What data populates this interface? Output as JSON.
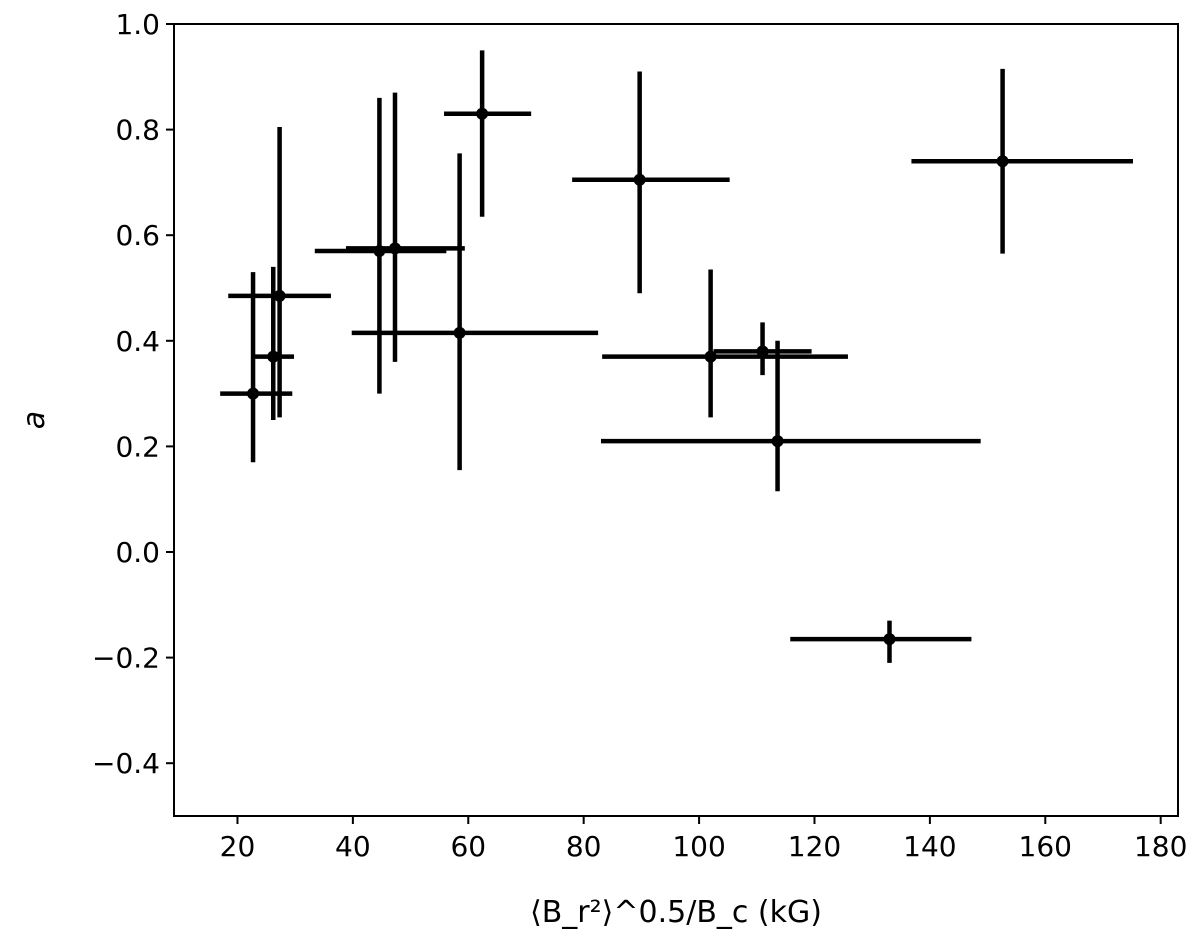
{
  "chart_data": {
    "type": "scatter",
    "title": "",
    "xlabel": "⟨B_r²⟩^0.5/B_c (kG)",
    "ylabel": "a",
    "xlim": [
      9,
      183
    ],
    "ylim": [
      -0.5,
      1.0
    ],
    "x_ticks": [
      20,
      40,
      60,
      80,
      100,
      120,
      140,
      160,
      180
    ],
    "y_ticks": [
      -0.4,
      -0.2,
      0.0,
      0.2,
      0.4,
      0.6,
      0.8,
      1.0
    ],
    "x_tick_labels": [
      "20",
      "40",
      "60",
      "80",
      "100",
      "120",
      "140",
      "160",
      "180"
    ],
    "y_tick_labels": [
      "−0.4",
      "−0.2",
      "0.0",
      "0.2",
      "0.4",
      "0.6",
      "0.8",
      "1.0"
    ],
    "grid": false,
    "legend": "none",
    "series": [
      {
        "color": "#000000",
        "points": [
          {
            "x": 22.7,
            "y": 0.3,
            "xmin": 17.0,
            "xmax": 29.5,
            "ymin": 0.17,
            "ymax": 0.53
          },
          {
            "x": 26.2,
            "y": 0.37,
            "xmin": 23.0,
            "xmax": 29.8,
            "ymin": 0.25,
            "ymax": 0.54
          },
          {
            "x": 27.3,
            "y": 0.485,
            "xmin": 18.4,
            "xmax": 36.2,
            "ymin": 0.255,
            "ymax": 0.805
          },
          {
            "x": 44.6,
            "y": 0.57,
            "xmin": 33.4,
            "xmax": 56.2,
            "ymin": 0.3,
            "ymax": 0.86
          },
          {
            "x": 47.3,
            "y": 0.575,
            "xmin": 38.8,
            "xmax": 59.4,
            "ymin": 0.36,
            "ymax": 0.87
          },
          {
            "x": 58.5,
            "y": 0.415,
            "xmin": 39.8,
            "xmax": 82.5,
            "ymin": 0.155,
            "ymax": 0.755
          },
          {
            "x": 62.4,
            "y": 0.83,
            "xmin": 55.8,
            "xmax": 70.9,
            "ymin": 0.635,
            "ymax": 0.95
          },
          {
            "x": 89.7,
            "y": 0.705,
            "xmin": 78.0,
            "xmax": 105.3,
            "ymin": 0.49,
            "ymax": 0.91
          },
          {
            "x": 102.0,
            "y": 0.37,
            "xmin": 83.2,
            "xmax": 125.8,
            "ymin": 0.255,
            "ymax": 0.535
          },
          {
            "x": 111.0,
            "y": 0.38,
            "xmin": 102.5,
            "xmax": 119.5,
            "ymin": 0.335,
            "ymax": 0.435
          },
          {
            "x": 113.6,
            "y": 0.21,
            "xmin": 83.0,
            "xmax": 148.8,
            "ymin": 0.115,
            "ymax": 0.4
          },
          {
            "x": 133.0,
            "y": -0.165,
            "xmin": 115.8,
            "xmax": 147.2,
            "ymin": -0.21,
            "ymax": -0.13
          },
          {
            "x": 152.6,
            "y": 0.74,
            "xmin": 136.8,
            "xmax": 175.2,
            "ymin": 0.565,
            "ymax": 0.915
          }
        ]
      }
    ]
  }
}
